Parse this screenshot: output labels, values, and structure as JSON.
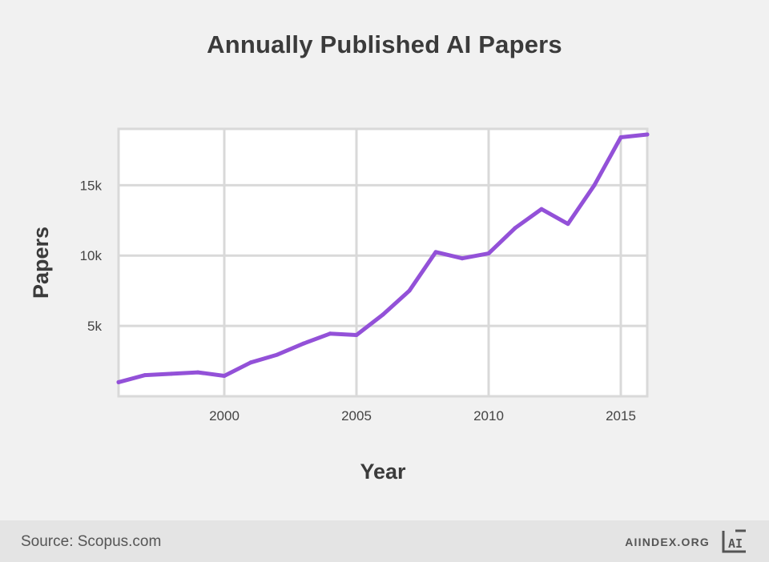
{
  "chart_data": {
    "type": "line",
    "title": "Annually Published AI Papers",
    "xlabel": "Year",
    "ylabel": "Papers",
    "xlim": [
      1996,
      2016
    ],
    "ylim": [
      0,
      19000
    ],
    "xticks": [
      2000,
      2005,
      2010,
      2015
    ],
    "xtick_labels": [
      "2000",
      "2005",
      "2010",
      "2015"
    ],
    "yticks": [
      5000,
      10000,
      15000
    ],
    "ytick_labels": [
      "5k",
      "10k",
      "15k"
    ],
    "grid": true,
    "legend": "none",
    "series": [
      {
        "color": "#9351d8",
        "x": [
          1996,
          1997,
          1998,
          1999,
          2000,
          2001,
          2002,
          2003,
          2004,
          2005,
          2006,
          2007,
          2008,
          2009,
          2010,
          2011,
          2012,
          2013,
          2014,
          2015,
          2016
        ],
        "y": [
          1000,
          1500,
          1600,
          1700,
          1450,
          2400,
          2950,
          3750,
          4450,
          4350,
          5800,
          7500,
          10250,
          9800,
          10150,
          11950,
          13300,
          12250,
          15000,
          18400,
          18600
        ]
      }
    ]
  },
  "footer": {
    "source": "Source: Scopus.com",
    "brand": "AIINDEX.ORG",
    "logo_text": "AI"
  },
  "colors": {
    "background": "#f1f1f1",
    "plot_background": "#ffffff",
    "grid": "#d9d9d9",
    "line": "#9351d8",
    "footer": "#e4e4e4"
  }
}
